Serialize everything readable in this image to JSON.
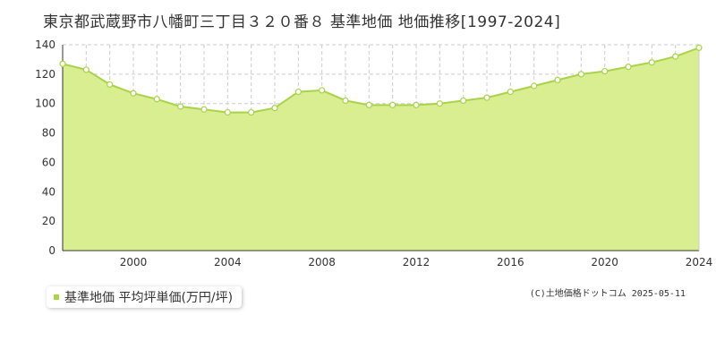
{
  "chart_data": {
    "type": "area",
    "title": "東京都武蔵野市八幡町三丁目３２０番８ 基準地価 地価推移[1997-2024]",
    "xlabel": "",
    "ylabel": "",
    "x": [
      1997,
      1998,
      1999,
      2000,
      2001,
      2002,
      2003,
      2004,
      2005,
      2006,
      2007,
      2008,
      2009,
      2010,
      2011,
      2012,
      2013,
      2014,
      2015,
      2016,
      2017,
      2018,
      2019,
      2020,
      2021,
      2022,
      2023,
      2024
    ],
    "series": [
      {
        "name": "基準地価 平均坪単価(万円/坪)",
        "values": [
          127,
          123,
          113,
          107,
          103,
          98,
          96,
          94,
          94,
          97,
          108,
          109,
          102,
          99,
          99,
          99,
          100,
          102,
          104,
          108,
          112,
          116,
          120,
          122,
          125,
          128,
          132,
          138
        ]
      }
    ],
    "xlim": [
      1997,
      2024
    ],
    "ylim": [
      0,
      140
    ],
    "x_ticks": [
      2000,
      2004,
      2008,
      2012,
      2016,
      2020,
      2024
    ],
    "y_ticks": [
      0,
      20,
      40,
      60,
      80,
      100,
      120,
      140
    ],
    "grid": true,
    "legend_position": "bottom-left",
    "colors": {
      "fill": "#d9ed91",
      "line": "#a8d34a",
      "marker_fill": "#ffffff",
      "grid": "#cccccc",
      "axis": "#333333"
    }
  },
  "legend": {
    "label": "基準地価 平均坪単価(万円/坪)"
  },
  "copyright": "(C)土地価格ドットコム 2025-05-11"
}
